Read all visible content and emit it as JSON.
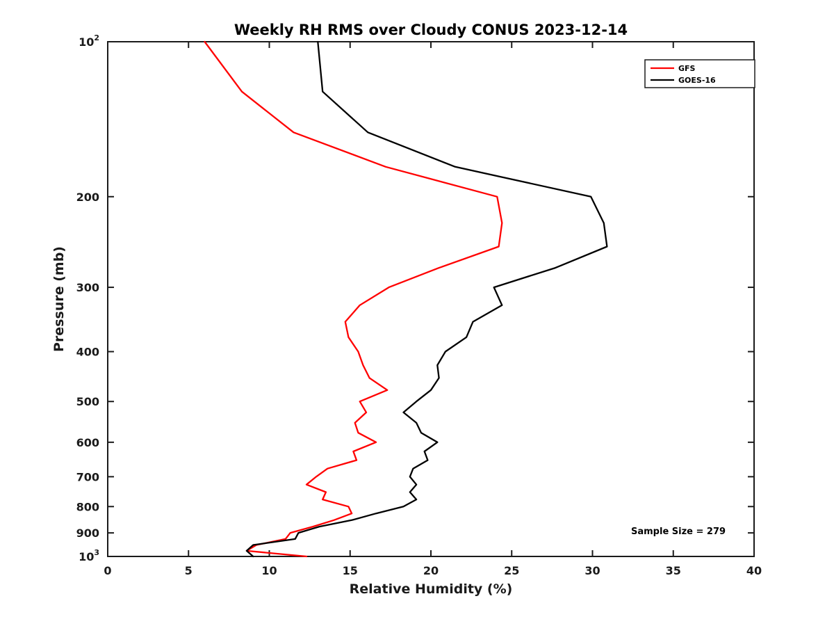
{
  "title": "Weekly RH RMS over Cloudy CONUS 2023-12-14",
  "chart_data": {
    "type": "line",
    "title": "Weekly RH RMS over Cloudy CONUS 2023-12-14",
    "x_axis": {
      "label": "Relative Humidity (%)",
      "min": 0,
      "max": 40,
      "ticks": [
        0,
        5,
        10,
        15,
        20,
        25,
        30,
        35,
        40
      ]
    },
    "y_axis": {
      "label": "Pressure (mb)",
      "scale": "log10",
      "min": 100,
      "max": 1000,
      "direction": "increasing-downward",
      "ticks": [
        100,
        200,
        300,
        400,
        500,
        600,
        700,
        800,
        900,
        1000
      ],
      "tick_labels": [
        "10^2",
        "200",
        "300",
        "400",
        "500",
        "600",
        "700",
        "800",
        "900",
        "10^3"
      ]
    },
    "legend_position": "top-right",
    "annotation": "Sample Size = 279",
    "pressure_mb": [
      100,
      125,
      150,
      175,
      200,
      225,
      250,
      275,
      300,
      325,
      350,
      375,
      400,
      425,
      450,
      475,
      500,
      525,
      550,
      575,
      600,
      625,
      650,
      675,
      700,
      725,
      750,
      775,
      800,
      825,
      850,
      875,
      900,
      925,
      950,
      975,
      1000
    ],
    "series": [
      {
        "name": "GFS",
        "color": "#ff0000",
        "rh_percent": [
          6.0,
          8.3,
          11.5,
          17.2,
          24.1,
          24.4,
          24.2,
          20.5,
          17.4,
          15.6,
          14.7,
          14.9,
          15.5,
          15.8,
          16.2,
          17.3,
          15.6,
          16.0,
          15.3,
          15.5,
          16.6,
          15.2,
          15.4,
          13.6,
          12.9,
          12.3,
          13.5,
          13.3,
          14.9,
          15.1,
          14.0,
          12.7,
          11.3,
          11.0,
          9.2,
          8.6,
          12.3
        ]
      },
      {
        "name": "GOES-16",
        "color": "#000000",
        "rh_percent": [
          13.0,
          13.3,
          16.1,
          21.5,
          29.9,
          30.7,
          30.9,
          27.7,
          23.9,
          24.4,
          22.6,
          22.2,
          20.9,
          20.4,
          20.5,
          20.0,
          19.1,
          18.3,
          19.1,
          19.4,
          20.4,
          19.6,
          19.8,
          18.9,
          18.7,
          19.1,
          18.7,
          19.1,
          18.3,
          16.6,
          15.1,
          13.1,
          11.8,
          11.6,
          9.0,
          8.6,
          9.0
        ]
      }
    ]
  }
}
